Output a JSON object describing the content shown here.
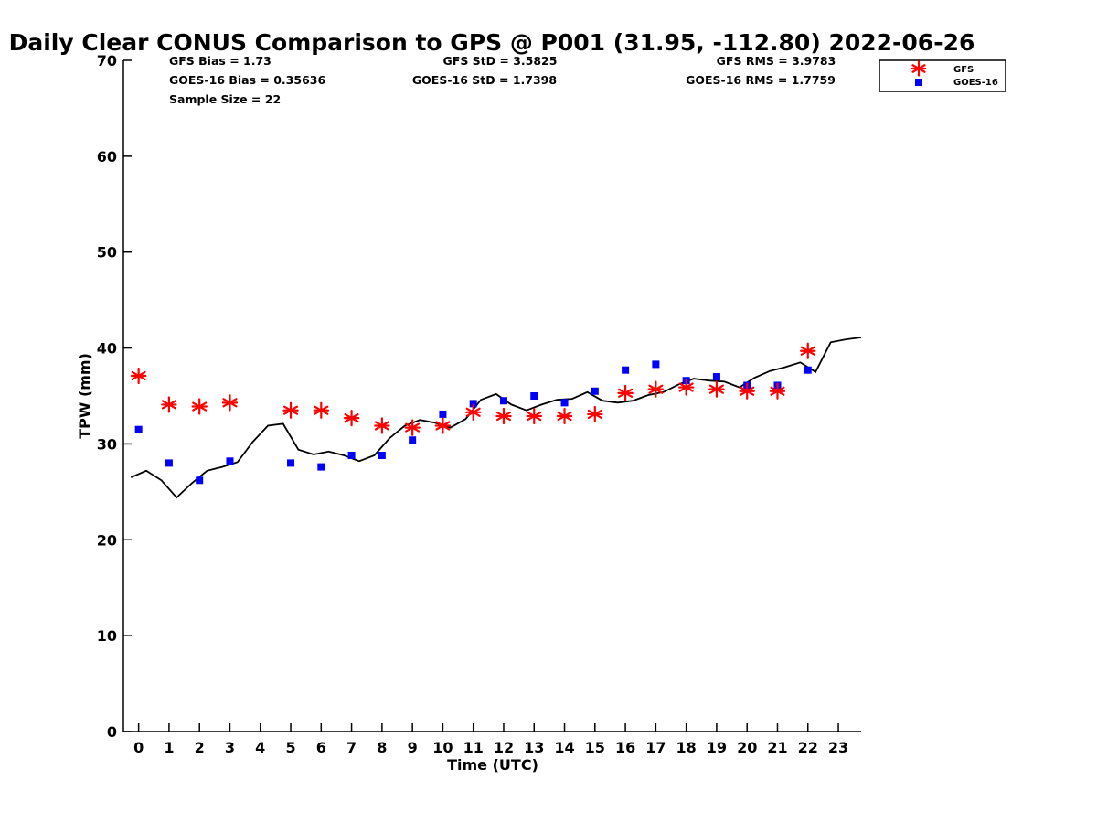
{
  "chart_data": {
    "type": "scatter",
    "title": "Daily Clear CONUS Comparison to GPS @ P001 (31.95, -112.80) 2022-06-26",
    "xlabel": "Time (UTC)",
    "ylabel": "TPW (mm)",
    "xlim": [
      -0.5,
      23.75
    ],
    "ylim": [
      0,
      70
    ],
    "xticks": [
      0,
      1,
      2,
      3,
      4,
      5,
      6,
      7,
      8,
      9,
      10,
      11,
      12,
      13,
      14,
      15,
      16,
      17,
      18,
      19,
      20,
      21,
      22,
      23
    ],
    "yticks": [
      0,
      10,
      20,
      30,
      40,
      50,
      60,
      70
    ],
    "grid": false,
    "legend_position": "top-right",
    "stats": {
      "gfs_bias": "GFS Bias = 1.73",
      "goes_bias": "GOES-16 Bias = 0.35636",
      "sample_size": "Sample Size = 22",
      "gfs_std": "GFS StD = 3.5825",
      "goes_std": "GOES-16 StD = 1.7398",
      "gfs_rms": "GFS RMS = 3.9783",
      "goes_rms": "GOES-16 RMS = 1.7759"
    },
    "series": [
      {
        "name": "GFS",
        "marker": "asterisk",
        "color": "#ff0000",
        "points": [
          [
            0,
            37.1
          ],
          [
            1,
            34.1
          ],
          [
            2,
            33.9
          ],
          [
            3,
            34.3
          ],
          [
            5,
            33.5
          ],
          [
            6,
            33.5
          ],
          [
            7,
            32.7
          ],
          [
            8,
            31.9
          ],
          [
            9,
            31.7
          ],
          [
            10,
            31.9
          ],
          [
            11,
            33.3
          ],
          [
            12,
            32.9
          ],
          [
            13,
            32.9
          ],
          [
            14,
            32.9
          ],
          [
            15,
            33.1
          ],
          [
            16,
            35.3
          ],
          [
            17,
            35.7
          ],
          [
            18,
            35.9
          ],
          [
            19,
            35.7
          ],
          [
            20,
            35.5
          ],
          [
            21,
            35.5
          ],
          [
            22,
            39.7
          ]
        ]
      },
      {
        "name": "GOES-16",
        "marker": "square",
        "color": "#0000ff",
        "points": [
          [
            0,
            31.5
          ],
          [
            1,
            28
          ],
          [
            2,
            26.2
          ],
          [
            3,
            28.2
          ],
          [
            5,
            28
          ],
          [
            6,
            27.6
          ],
          [
            7,
            28.8
          ],
          [
            8,
            28.8
          ],
          [
            9,
            30.4
          ],
          [
            10,
            33.1
          ],
          [
            11,
            34.2
          ],
          [
            12,
            34.5
          ],
          [
            13,
            35
          ],
          [
            14,
            34.3
          ],
          [
            15,
            35.5
          ],
          [
            16,
            37.7
          ],
          [
            17,
            38.3
          ],
          [
            18,
            36.6
          ],
          [
            19,
            37
          ],
          [
            20,
            36.1
          ],
          [
            21,
            36.1
          ],
          [
            22,
            37.7
          ]
        ]
      },
      {
        "name": "",
        "marker": "line",
        "color": "#000000",
        "points": [
          [
            -0.25,
            26.5
          ],
          [
            0.25,
            27.2
          ],
          [
            0.75,
            26.2
          ],
          [
            1.25,
            24.4
          ],
          [
            1.75,
            25.9
          ],
          [
            2.25,
            27.2
          ],
          [
            2.75,
            27.6
          ],
          [
            3.25,
            28.1
          ],
          [
            3.75,
            30.2
          ],
          [
            4.25,
            31.9
          ],
          [
            4.75,
            32.1
          ],
          [
            5.25,
            29.4
          ],
          [
            5.75,
            28.9
          ],
          [
            6.25,
            29.2
          ],
          [
            6.75,
            28.8
          ],
          [
            7.25,
            28.2
          ],
          [
            7.75,
            28.8
          ],
          [
            8.25,
            30.6
          ],
          [
            8.75,
            31.9
          ],
          [
            9.25,
            32.5
          ],
          [
            9.75,
            32.2
          ],
          [
            10.25,
            31.7
          ],
          [
            10.75,
            32.6
          ],
          [
            11.25,
            34.6
          ],
          [
            11.75,
            35.2
          ],
          [
            12.25,
            34.1
          ],
          [
            12.75,
            33.5
          ],
          [
            13.25,
            34.1
          ],
          [
            13.75,
            34.6
          ],
          [
            14.25,
            34.7
          ],
          [
            14.75,
            35.4
          ],
          [
            15.25,
            34.5
          ],
          [
            15.75,
            34.3
          ],
          [
            16.25,
            34.5
          ],
          [
            16.75,
            35.1
          ],
          [
            17.25,
            35.4
          ],
          [
            17.75,
            36.2
          ],
          [
            18.25,
            36.8
          ],
          [
            18.75,
            36.6
          ],
          [
            19.25,
            36.5
          ],
          [
            19.75,
            35.9
          ],
          [
            20.25,
            36.9
          ],
          [
            20.75,
            37.6
          ],
          [
            21.25,
            38
          ],
          [
            21.75,
            38.5
          ],
          [
            22.25,
            37.5
          ],
          [
            22.75,
            40.6
          ],
          [
            23.25,
            40.9
          ],
          [
            23.75,
            41.1
          ]
        ]
      }
    ]
  }
}
